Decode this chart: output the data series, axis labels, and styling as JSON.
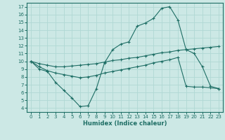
{
  "xlabel": "Humidex (Indice chaleur)",
  "xlim": [
    -0.5,
    23.5
  ],
  "ylim": [
    3.5,
    17.5
  ],
  "xticks": [
    0,
    1,
    2,
    3,
    4,
    5,
    6,
    7,
    8,
    9,
    10,
    11,
    12,
    13,
    14,
    15,
    16,
    17,
    18,
    19,
    20,
    21,
    22,
    23
  ],
  "yticks": [
    4,
    5,
    6,
    7,
    8,
    9,
    10,
    11,
    12,
    13,
    14,
    15,
    16,
    17
  ],
  "bg_color": "#cce8e5",
  "grid_color": "#b0d8d4",
  "line_color": "#1e6e65",
  "line1_x": [
    0,
    1,
    2,
    3,
    4,
    5,
    6,
    7,
    8,
    9,
    10,
    11,
    12,
    13,
    14,
    15,
    16,
    17,
    18,
    19,
    20,
    21,
    22,
    23
  ],
  "line1_y": [
    10.0,
    9.0,
    8.7,
    7.3,
    6.3,
    5.3,
    4.2,
    4.3,
    6.5,
    9.8,
    11.5,
    12.2,
    12.5,
    14.5,
    14.9,
    15.5,
    16.8,
    17.0,
    15.3,
    11.5,
    11.0,
    9.3,
    6.8,
    6.5
  ],
  "line2_x": [
    0,
    1,
    2,
    3,
    4,
    5,
    6,
    7,
    8,
    9,
    10,
    11,
    12,
    13,
    14,
    15,
    16,
    17,
    18,
    19,
    20,
    21,
    22,
    23
  ],
  "line2_y": [
    10.0,
    9.7,
    9.5,
    9.3,
    9.3,
    9.4,
    9.5,
    9.6,
    9.7,
    9.9,
    10.1,
    10.2,
    10.4,
    10.5,
    10.7,
    10.9,
    11.1,
    11.2,
    11.4,
    11.5,
    11.6,
    11.7,
    11.8,
    11.9
  ],
  "line3_x": [
    0,
    1,
    2,
    3,
    4,
    5,
    6,
    7,
    8,
    9,
    10,
    11,
    12,
    13,
    14,
    15,
    16,
    17,
    18,
    19,
    20,
    21,
    22,
    23
  ],
  "line3_y": [
    10.0,
    9.3,
    8.8,
    8.5,
    8.3,
    8.1,
    7.9,
    8.0,
    8.2,
    8.5,
    8.7,
    8.9,
    9.1,
    9.3,
    9.5,
    9.8,
    10.0,
    10.2,
    10.5,
    6.8,
    6.7,
    6.7,
    6.6,
    6.5
  ]
}
